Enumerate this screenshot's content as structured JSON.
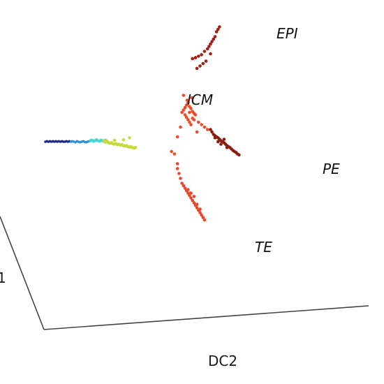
{
  "chart_data": {
    "type": "scatter",
    "projection": "3d",
    "grid": false,
    "legend": "none",
    "xlabel": "DC2",
    "zlabel_fragment": "1",
    "annotations": [
      "EPI",
      "ICM",
      "PE",
      "TE"
    ],
    "colormap": "jet",
    "series": [
      {
        "color": "#1a2a8c",
        "x": [
          0.0,
          0.05,
          0.1,
          0.15,
          0.2,
          0.25,
          0.3,
          0.35,
          0.4,
          0.45,
          0.5,
          0.55,
          0.6,
          0.65,
          0.7,
          0.75,
          0.8
        ],
        "y": [
          0.0,
          0.01,
          0.0,
          0.01,
          0.0,
          0.01,
          0.0,
          0.01,
          0.0,
          0.01,
          0.0,
          0.01,
          0.0,
          0.0,
          0.01,
          0.0,
          0.01
        ]
      },
      {
        "color": "#2e8fd6",
        "x": [
          0.85,
          0.9,
          0.95,
          1.0,
          1.05,
          1.1,
          1.15,
          1.2,
          1.25,
          1.3,
          1.35,
          1.4,
          1.45
        ],
        "y": [
          0.0,
          0.01,
          0.0,
          -0.01,
          0.01,
          0.0,
          -0.01,
          0.0,
          0.01,
          0.0,
          -0.01,
          0.0,
          0.01
        ]
      },
      {
        "color": "#49d6d0",
        "x": [
          1.5,
          1.55,
          1.6,
          1.65,
          1.7,
          1.75,
          1.8,
          1.85,
          1.9,
          1.95,
          2.0
        ],
        "y": [
          0.02,
          0.03,
          0.01,
          0.02,
          0.04,
          0.02,
          0.01,
          0.03,
          0.02,
          0.01,
          0.03
        ]
      },
      {
        "color": "#c9d83a",
        "x": [
          1.95,
          2.0,
          2.05,
          2.1,
          2.15,
          2.2,
          2.25,
          2.3,
          2.35,
          2.4,
          2.45,
          2.5,
          2.55,
          2.6,
          2.65,
          2.7,
          2.75,
          2.8,
          2.85,
          2.9,
          2.95,
          3.0,
          2.3,
          2.6,
          2.8
        ],
        "y": [
          0.02,
          -0.01,
          0.01,
          -0.02,
          -0.03,
          -0.02,
          -0.04,
          -0.05,
          -0.04,
          -0.06,
          -0.05,
          -0.07,
          -0.06,
          -0.08,
          -0.09,
          -0.08,
          -0.1,
          -0.11,
          -0.1,
          -0.12,
          -0.13,
          -0.12,
          0.03,
          0.04,
          0.08
        ]
      },
      {
        "color": "#f04a2a",
        "x": [
          4.3,
          4.55,
          4.6,
          4.65,
          4.7,
          4.75,
          4.8,
          4.85,
          4.9,
          4.95,
          5.0,
          4.7,
          4.75,
          4.8,
          4.85,
          4.9,
          4.65,
          4.8,
          4.95,
          4.72,
          4.88,
          5.1,
          5.2,
          5.3,
          5.4,
          5.05,
          4.6,
          4.5,
          4.4,
          4.2
        ],
        "y": [
          -0.25,
          0.6,
          0.65,
          0.7,
          0.75,
          0.8,
          0.72,
          0.68,
          0.62,
          0.58,
          0.55,
          0.5,
          0.45,
          0.4,
          0.35,
          0.48,
          0.55,
          0.6,
          0.45,
          0.85,
          0.9,
          0.4,
          0.35,
          0.3,
          0.25,
          0.2,
          0.95,
          0.3,
          0.1,
          -0.2
        ]
      },
      {
        "color": "#e8452c",
        "x": [
          4.4,
          4.45,
          4.5,
          4.55,
          4.6,
          4.65,
          4.7,
          4.75,
          4.8,
          4.85,
          4.9,
          4.95,
          5.0,
          5.05,
          5.1,
          5.15,
          5.2,
          5.25,
          5.3,
          4.85,
          4.95,
          5.05,
          5.15,
          4.75,
          4.4
        ],
        "y": [
          -0.55,
          -0.65,
          -0.75,
          -0.85,
          -0.9,
          -0.95,
          -1.0,
          -1.05,
          -1.1,
          -1.15,
          -1.2,
          -1.25,
          -1.3,
          -1.35,
          -1.4,
          -1.45,
          -1.5,
          -1.55,
          -1.6,
          -1.05,
          -1.12,
          -1.28,
          -1.38,
          -0.98,
          -0.45
        ]
      },
      {
        "color": "#8b1c10",
        "x": [
          5.6,
          5.65,
          5.7,
          5.75,
          5.8,
          5.85,
          5.9,
          5.95,
          6.0,
          6.05,
          6.1,
          6.15,
          6.2,
          6.25,
          6.3,
          6.35,
          6.4,
          6.45,
          5.75,
          5.85,
          5.95,
          6.05,
          5.55,
          5.65,
          5.5
        ],
        "y": [
          0.15,
          0.12,
          0.1,
          0.08,
          0.05,
          0.02,
          0.0,
          -0.02,
          -0.05,
          -0.08,
          -0.1,
          -0.12,
          -0.15,
          -0.18,
          -0.2,
          -0.22,
          -0.25,
          -0.27,
          0.0,
          -0.05,
          0.05,
          -0.12,
          0.2,
          0.08,
          0.25
        ]
      },
      {
        "color": "#a01e12",
        "x": [
          4.9,
          5.0,
          5.1,
          5.2,
          5.3,
          5.4,
          5.45,
          5.5,
          5.55,
          5.6,
          5.65,
          5.7,
          5.75,
          5.8,
          5.35,
          5.5,
          5.25,
          5.15,
          5.05
        ],
        "y": [
          1.7,
          1.72,
          1.75,
          1.78,
          1.85,
          1.9,
          1.95,
          2.0,
          2.05,
          2.1,
          2.15,
          2.25,
          2.3,
          2.35,
          1.65,
          1.8,
          1.6,
          1.55,
          1.5
        ]
      }
    ]
  }
}
